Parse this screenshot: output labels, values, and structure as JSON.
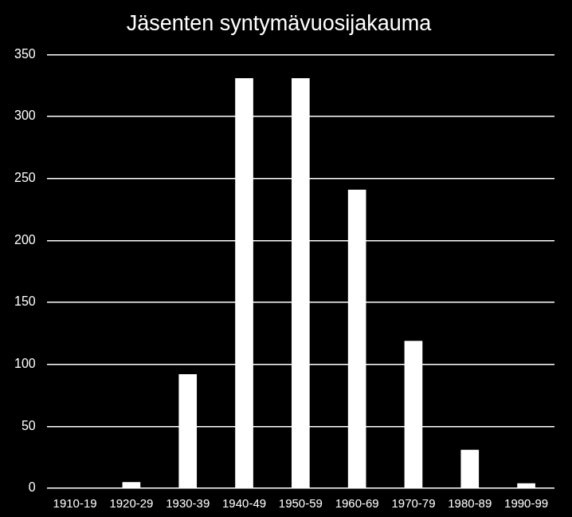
{
  "chart_data": {
    "type": "bar",
    "title": "Jäsenten syntymävuosijakauma",
    "categories": [
      "1910-19",
      "1920-29",
      "1930-39",
      "1940-49",
      "1950-59",
      "1960-69",
      "1970-79",
      "1980-89",
      "1990-99"
    ],
    "values": [
      0,
      5,
      92,
      331,
      331,
      241,
      119,
      31,
      4
    ],
    "color": "#ffffff",
    "ylim": [
      0,
      350
    ],
    "yticks": [
      0,
      50,
      100,
      150,
      200,
      250,
      300,
      350
    ],
    "grid": true
  }
}
